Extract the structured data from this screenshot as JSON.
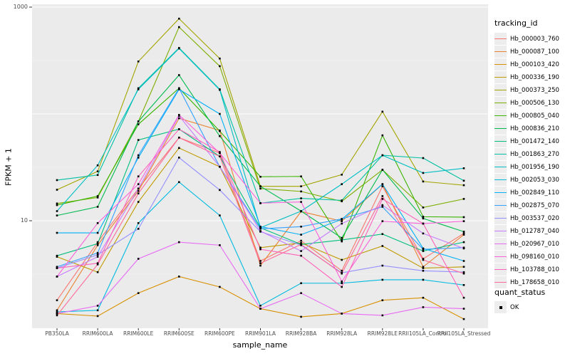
{
  "panel": {
    "background": "#EBEBEB",
    "grid_color": "#FFFFFF",
    "axis_text_color": "#4D4D4D",
    "tick_color": "#333333",
    "point_color": "#000000"
  },
  "chart_data": {
    "type": "line",
    "title": "",
    "xlabel": "sample_name",
    "ylabel": "FPKM + 1",
    "yscale": "log10",
    "ylim": [
      1,
      1064
    ],
    "grid": true,
    "yticks": [
      {
        "value": 10,
        "label": "10"
      },
      {
        "value": 1000,
        "label": "1000"
      }
    ],
    "gridlines_major": [
      10,
      100,
      1000
    ],
    "gridlines_minor": [
      3.162,
      31.62,
      316.2
    ],
    "point_shape": "small-black-square",
    "legend": {
      "title": "tracking_id",
      "position": "right"
    },
    "legend2": {
      "title": "quant_status",
      "items": [
        {
          "label": "OK"
        }
      ]
    },
    "categories": [
      "PB350LA",
      "RRIM600LA",
      "RRIM600LE",
      "RRIM600SE",
      "RRIM600PE",
      "RRIM901LA",
      "RRIM928BA",
      "RRIM928LA",
      "RRIM928LE",
      "RRII105LA_Control",
      "RRII105LA_Stressed"
    ],
    "series": [
      {
        "name": "Hb_000003_760",
        "color": "#F8766D",
        "values": [
          1.8,
          6.3,
          20,
          60,
          43,
          4.2,
          6.5,
          3.4,
          21,
          4.4,
          7.6
        ]
      },
      {
        "name": "Hb_000087_100",
        "color": "#EA8331",
        "values": [
          1.45,
          5.9,
          19,
          91,
          70,
          3.8,
          12.2,
          9.9,
          22,
          3.7,
          7.4
        ]
      },
      {
        "name": "Hb_000103_420",
        "color": "#D89000",
        "values": [
          1.35,
          1.28,
          2.1,
          3.0,
          2.4,
          1.5,
          1.26,
          1.35,
          1.8,
          1.9,
          1.2
        ]
      },
      {
        "name": "Hb_000336_190",
        "color": "#C09B00",
        "values": [
          4.6,
          3.3,
          15,
          48,
          32,
          5.6,
          6.2,
          4.3,
          5.8,
          3.6,
          3.7
        ]
      },
      {
        "name": "Hb_000373_250",
        "color": "#A3A500",
        "values": [
          19.5,
          29,
          310,
          780,
          330,
          21,
          21,
          27,
          105,
          23.3,
          21.5
        ]
      },
      {
        "name": "Hb_000506_130",
        "color": "#7CAE00",
        "values": [
          14.5,
          16.5,
          85,
          650,
          280,
          20,
          18.8,
          15.2,
          30,
          13.3,
          16
        ]
      },
      {
        "name": "Hb_000805_040",
        "color": "#39B600",
        "values": [
          14.0,
          17,
          80,
          174,
          69,
          25.8,
          26,
          6.4,
          63,
          10.9,
          10.8
        ]
      },
      {
        "name": "Hb_000836_210",
        "color": "#00BB4E",
        "values": [
          11.2,
          13.5,
          85,
          231,
          62,
          21,
          12.3,
          6.9,
          30,
          10.5,
          7.9
        ]
      },
      {
        "name": "Hb_001472_140",
        "color": "#00BF7D",
        "values": [
          4.7,
          6.1,
          57,
          72,
          40,
          8.6,
          6.0,
          6.6,
          7.5,
          5.2,
          6.3
        ]
      },
      {
        "name": "Hb_001863_270",
        "color": "#00C1A3",
        "values": [
          24,
          26.8,
          174,
          415,
          170,
          14.6,
          16.2,
          15.5,
          41,
          38.6,
          23.7
        ]
      },
      {
        "name": "Hb_001956_190",
        "color": "#00BFC4",
        "values": [
          12.3,
          33,
          170,
          410,
          168,
          8.6,
          12.3,
          22,
          41,
          28,
          31
        ]
      },
      {
        "name": "Hb_002053_030",
        "color": "#00BAE0",
        "values": [
          1.4,
          1.45,
          9.5,
          23,
          11.2,
          1.6,
          2.6,
          2.6,
          2.8,
          2.8,
          2.5
        ]
      },
      {
        "name": "Hb_002849_110",
        "color": "#00B0F6",
        "values": [
          7.7,
          7.7,
          39,
          170,
          100,
          8.8,
          7.4,
          10.3,
          22,
          5.5,
          4.2
        ]
      },
      {
        "name": "Hb_002875_070",
        "color": "#35A2FF",
        "values": [
          3.7,
          5.0,
          41,
          174,
          32,
          8.4,
          8.8,
          10.4,
          13.5,
          5.4,
          5.6
        ]
      },
      {
        "name": "Hb_003537_020",
        "color": "#9590FF",
        "values": [
          3.6,
          4.8,
          8.4,
          39,
          19.4,
          7.9,
          5.9,
          3.25,
          3.8,
          3.4,
          3.3
        ]
      },
      {
        "name": "Hb_012787_040",
        "color": "#C77CFF",
        "values": [
          3.0,
          4.6,
          20,
          96,
          32,
          8.0,
          5.2,
          9.4,
          14,
          7.6,
          5.5
        ]
      },
      {
        "name": "Hb_020967_010",
        "color": "#E76BF3",
        "values": [
          1.35,
          1.6,
          4.4,
          6.3,
          5.9,
          1.5,
          2.1,
          1.35,
          1.3,
          1.55,
          1.5
        ]
      },
      {
        "name": "Hb_098160_010",
        "color": "#FA62DB",
        "values": [
          3.0,
          9.5,
          22,
          98,
          43,
          14.6,
          15,
          2.7,
          9.9,
          9.4,
          9.9
        ]
      },
      {
        "name": "Hb_103788_010",
        "color": "#FF62BC",
        "values": [
          3.6,
          4.0,
          26,
          72,
          44,
          5.4,
          4.7,
          2.4,
          16,
          9.4,
          1.9
        ]
      },
      {
        "name": "Hb_178658_010",
        "color": "#FF6A98",
        "values": [
          1.3,
          3.9,
          18,
          60,
          40,
          4.0,
          6.0,
          3.2,
          17,
          4.3,
          3.2
        ]
      }
    ]
  }
}
